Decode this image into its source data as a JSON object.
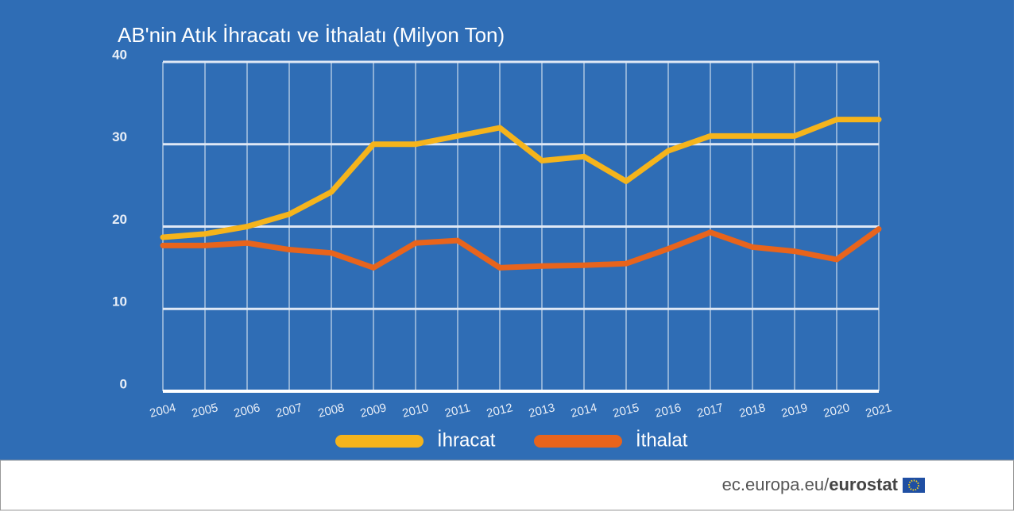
{
  "chart_data": {
    "type": "line",
    "title": "AB'nin Atık İhracatı ve İthalatı (Milyon Ton)",
    "categories": [
      "2004",
      "2005",
      "2006",
      "2007",
      "2008",
      "2009",
      "2010",
      "2011",
      "2012",
      "2013",
      "2014",
      "2015",
      "2016",
      "2017",
      "2018",
      "2019",
      "2020",
      "2021"
    ],
    "series": [
      {
        "name": "İhracat",
        "color": "#f5b41c",
        "values": [
          18.7,
          19.1,
          20.0,
          21.5,
          24.2,
          30,
          30,
          31,
          32,
          28.0,
          28.5,
          25.5,
          29.2,
          31,
          31,
          31,
          33,
          33
        ]
      },
      {
        "name": "İthalat",
        "color": "#e8641c",
        "values": [
          17.7,
          17.7,
          18.0,
          17.2,
          16.8,
          15.0,
          18.0,
          18.3,
          15.0,
          15.2,
          15.3,
          15.5,
          17.3,
          19.3,
          17.5,
          17.0,
          16.0,
          19.7
        ]
      }
    ],
    "ylim": [
      0,
      40
    ],
    "yticks": [
      0,
      10,
      20,
      30,
      40
    ],
    "grid": true,
    "legend": "bottom"
  },
  "footer": {
    "site": "ec.europa.eu/",
    "brand": "eurostat"
  }
}
